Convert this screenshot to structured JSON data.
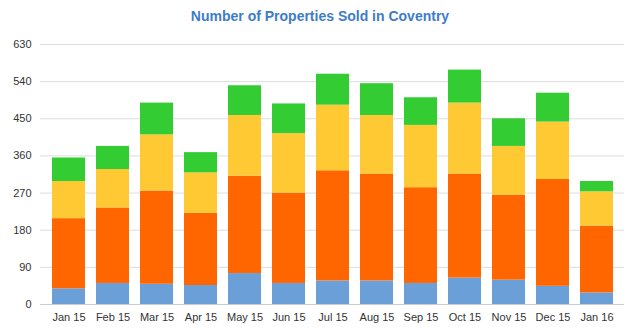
{
  "chart_data": {
    "type": "bar",
    "title": "Number of Properties Sold in Coventry",
    "categories": [
      "Jan 15",
      "Feb 15",
      "Mar 15",
      "Apr 15",
      "May 15",
      "Jun 15",
      "Jul 15",
      "Aug 15",
      "Sep 15",
      "Oct 15",
      "Nov 15",
      "Dec 15",
      "Jan 16"
    ],
    "series": [
      {
        "color": "#6a9fd8",
        "values": [
          38,
          51,
          49,
          46,
          75,
          51,
          57,
          57,
          51,
          64,
          59,
          44,
          28
        ]
      },
      {
        "color": "#ff6600",
        "values": [
          170,
          183,
          226,
          175,
          236,
          219,
          267,
          259,
          232,
          252,
          206,
          259,
          162
        ]
      },
      {
        "color": "#ffc933",
        "values": [
          90,
          93,
          136,
          98,
          147,
          144,
          159,
          142,
          151,
          172,
          118,
          139,
          83
        ]
      },
      {
        "color": "#33cc33",
        "values": [
          57,
          56,
          77,
          49,
          72,
          72,
          75,
          77,
          67,
          80,
          67,
          70,
          25
        ]
      }
    ],
    "stacked": true,
    "ylim": [
      0,
      630
    ],
    "yticks": [
      0,
      90,
      180,
      270,
      360,
      450,
      540,
      630
    ],
    "grid": true
  }
}
